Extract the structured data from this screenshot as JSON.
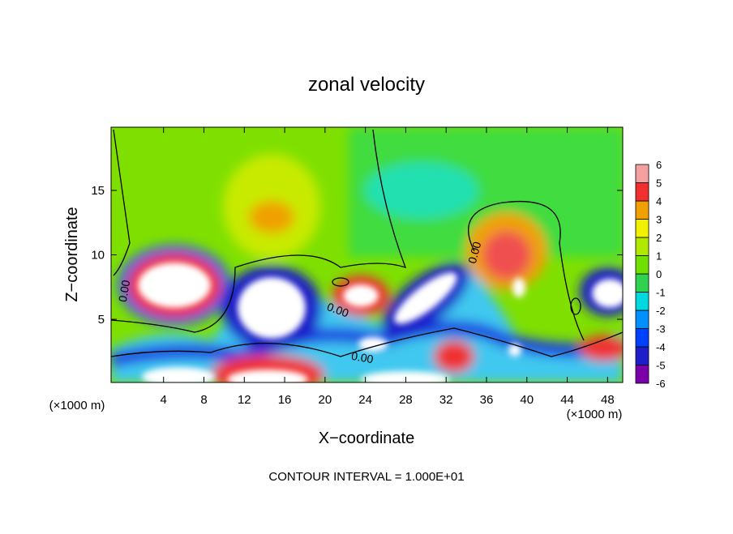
{
  "chart_data": {
    "type": "contour",
    "title": "zonal velocity",
    "x_label": "X−coordinate",
    "y_label": "Z−coordinate",
    "x_unit": "(×1000 m)",
    "footer": "CONTOUR INTERVAL = 1.000E+01",
    "xlim": [
      -1.2,
      49.5
    ],
    "ylim": [
      0.1,
      19.9
    ],
    "xticks": [
      4,
      8,
      12,
      16,
      20,
      24,
      28,
      32,
      36,
      40,
      44,
      48
    ],
    "yticks": [
      5,
      10,
      15
    ],
    "contour_labels": [
      "0.00",
      "0.00",
      "0.00",
      "0.00"
    ],
    "colorbar": {
      "levels": [
        -6,
        -5,
        -4,
        -3,
        -2,
        -1,
        0,
        1,
        2,
        3,
        4,
        5,
        6
      ],
      "colors": [
        "#7a00aa",
        "#1e1ec8",
        "#0040ff",
        "#0090ff",
        "#00d8e0",
        "#30d050",
        "#70e000",
        "#b0e800",
        "#f0f000",
        "#f0a000",
        "#f03030",
        "#f4a0a0"
      ]
    }
  }
}
